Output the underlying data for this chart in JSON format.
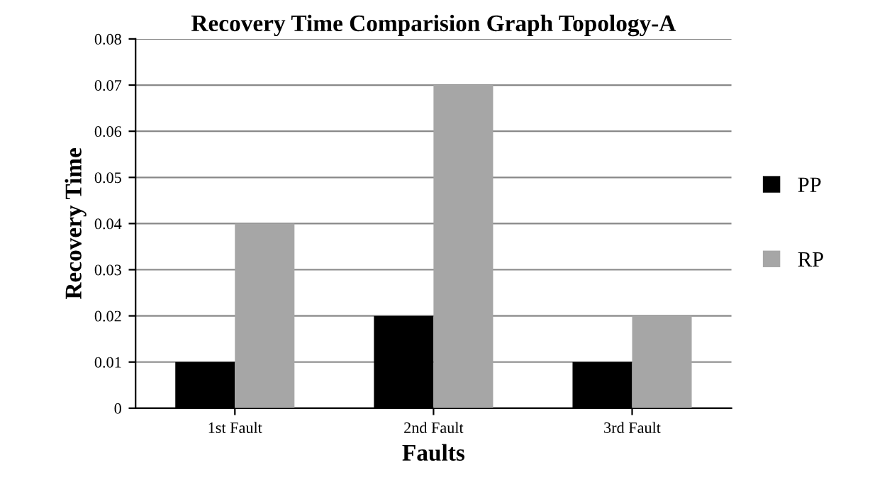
{
  "chart_data": {
    "type": "bar",
    "title": "Recovery Time Comparision Graph Topology-A",
    "xlabel": "Faults",
    "ylabel": "Recovery Time",
    "categories": [
      "1st Fault",
      "2nd Fault",
      "3rd Fault"
    ],
    "series": [
      {
        "name": "PP",
        "color": "#000000",
        "values": [
          0.01,
          0.02,
          0.01
        ]
      },
      {
        "name": "RP",
        "color": "#a6a6a6",
        "values": [
          0.04,
          0.07,
          0.02
        ]
      }
    ],
    "ylim": [
      0,
      0.08
    ],
    "yticks": [
      0,
      0.01,
      0.02,
      0.03,
      0.04,
      0.05,
      0.06,
      0.07,
      0.08
    ],
    "grid": "y",
    "legend": "right"
  }
}
